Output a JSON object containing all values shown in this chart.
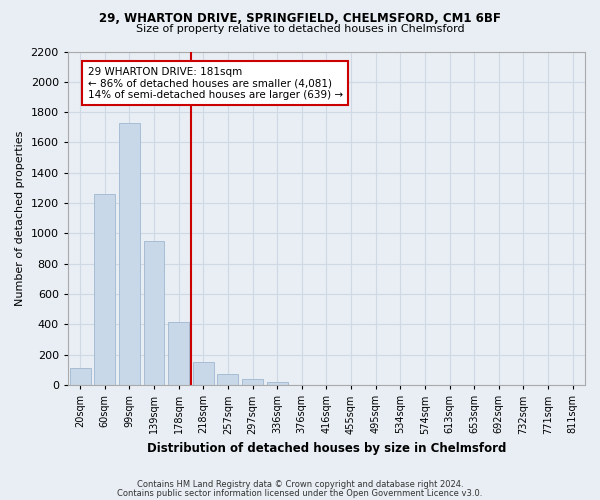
{
  "title1": "29, WHARTON DRIVE, SPRINGFIELD, CHELMSFORD, CM1 6BF",
  "title2": "Size of property relative to detached houses in Chelmsford",
  "xlabel": "Distribution of detached houses by size in Chelmsford",
  "ylabel": "Number of detached properties",
  "categories": [
    "20sqm",
    "60sqm",
    "99sqm",
    "139sqm",
    "178sqm",
    "218sqm",
    "257sqm",
    "297sqm",
    "336sqm",
    "376sqm",
    "416sqm",
    "455sqm",
    "495sqm",
    "534sqm",
    "574sqm",
    "613sqm",
    "653sqm",
    "692sqm",
    "732sqm",
    "771sqm",
    "811sqm"
  ],
  "values": [
    110,
    1260,
    1730,
    950,
    415,
    150,
    75,
    40,
    22,
    0,
    0,
    0,
    0,
    0,
    0,
    0,
    0,
    0,
    0,
    0,
    0
  ],
  "bar_color": "#c8d8e8",
  "bar_edgecolor": "#a0b8d0",
  "vline_x": 4.5,
  "vline_color": "#cc0000",
  "annotation_line1": "29 WHARTON DRIVE: 181sqm",
  "annotation_line2": "← 86% of detached houses are smaller (4,081)",
  "annotation_line3": "14% of semi-detached houses are larger (639) →",
  "annotation_box_color": "#ffffff",
  "annotation_box_edgecolor": "#cc0000",
  "ylim": [
    0,
    2200
  ],
  "yticks": [
    0,
    200,
    400,
    600,
    800,
    1000,
    1200,
    1400,
    1600,
    1800,
    2000,
    2200
  ],
  "grid_color": "#d0d8e4",
  "bg_color": "#e8eef4",
  "footnote1": "Contains HM Land Registry data © Crown copyright and database right 2024.",
  "footnote2": "Contains public sector information licensed under the Open Government Licence v3.0."
}
